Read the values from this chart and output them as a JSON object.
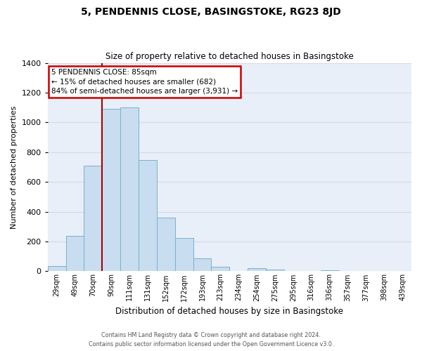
{
  "title": "5, PENDENNIS CLOSE, BASINGSTOKE, RG23 8JD",
  "subtitle": "Size of property relative to detached houses in Basingstoke",
  "xlabel": "Distribution of detached houses by size in Basingstoke",
  "ylabel": "Number of detached properties",
  "bar_labels": [
    "29sqm",
    "49sqm",
    "70sqm",
    "90sqm",
    "111sqm",
    "131sqm",
    "152sqm",
    "172sqm",
    "193sqm",
    "213sqm",
    "234sqm",
    "254sqm",
    "275sqm",
    "295sqm",
    "316sqm",
    "336sqm",
    "357sqm",
    "377sqm",
    "398sqm",
    "439sqm"
  ],
  "bar_values": [
    35,
    240,
    710,
    1090,
    1100,
    745,
    360,
    225,
    85,
    30,
    0,
    20,
    10,
    0,
    0,
    5,
    0,
    0,
    0,
    0
  ],
  "bar_color": "#c8ddef",
  "bar_edge_color": "#7ab0d0",
  "grid_color": "#d0dcea",
  "bg_color": "#e8eff8",
  "vline_color": "#aa0000",
  "annotation_line1": "5 PENDENNIS CLOSE: 85sqm",
  "annotation_line2": "← 15% of detached houses are smaller (682)",
  "annotation_line3": "84% of semi-detached houses are larger (3,931) →",
  "annotation_box_color": "#ffffff",
  "annotation_box_edge": "#cc0000",
  "footer_line1": "Contains HM Land Registry data © Crown copyright and database right 2024.",
  "footer_line2": "Contains public sector information licensed under the Open Government Licence v3.0.",
  "ylim": [
    0,
    1400
  ],
  "yticks": [
    0,
    200,
    400,
    600,
    800,
    1000,
    1200,
    1400
  ]
}
